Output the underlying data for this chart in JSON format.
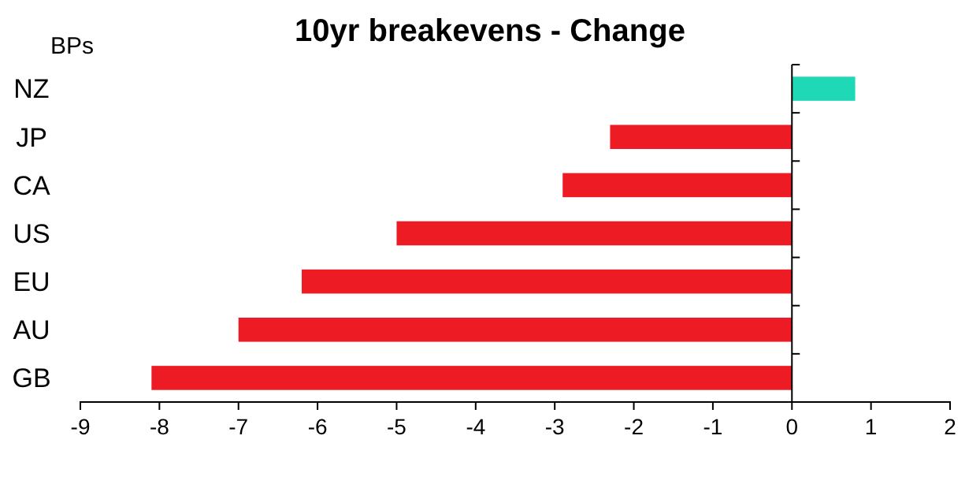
{
  "chart_data": {
    "type": "bar",
    "orientation": "horizontal",
    "title": "10yr breakevens - Change",
    "ylabel": "BPs",
    "categories": [
      "NZ",
      "JP",
      "CA",
      "US",
      "EU",
      "AU",
      "GB"
    ],
    "values": [
      0.8,
      -2.3,
      -2.9,
      -5,
      -6.2,
      -7,
      -8.1
    ],
    "colors": [
      "#1fd8b5",
      "#ed1c24",
      "#ed1c24",
      "#ed1c24",
      "#ed1c24",
      "#ed1c24",
      "#ed1c24"
    ],
    "xlim": [
      -9,
      2
    ],
    "xticks": [
      -9,
      -8,
      -7,
      -6,
      -5,
      -4,
      -3,
      -2,
      -1,
      0,
      1,
      2
    ]
  }
}
